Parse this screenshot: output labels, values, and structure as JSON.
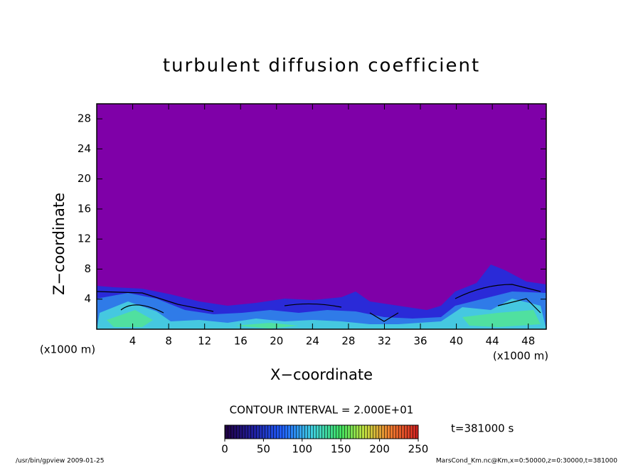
{
  "chart_data": {
    "type": "contour",
    "title": "turbulent diffusion coefficient",
    "xlabel": "X−coordinate",
    "ylabel": "Z−coordinate",
    "x_unit": "(x1000 m)",
    "y_unit": "(x1000 m)",
    "xlim": [
      0,
      50
    ],
    "xticks": [
      4,
      8,
      12,
      16,
      20,
      24,
      28,
      32,
      36,
      40,
      44,
      48
    ],
    "ylim": [
      0,
      30
    ],
    "yticks": [
      4,
      8,
      12,
      16,
      20,
      24,
      28
    ],
    "contour_interval": "CONTOUR INTERVAL = 2.000E+01",
    "colorbar": {
      "lim": [
        0,
        250
      ],
      "ticks": [
        0,
        50,
        100,
        150,
        200,
        250
      ]
    },
    "time_label": "t=381000 s",
    "footer_left": "/usr/bin/gpview   2009-01-25",
    "footer_right": "MarsCond_Km.nc@Km,x=0:50000,z=0:30000,t=381000"
  }
}
